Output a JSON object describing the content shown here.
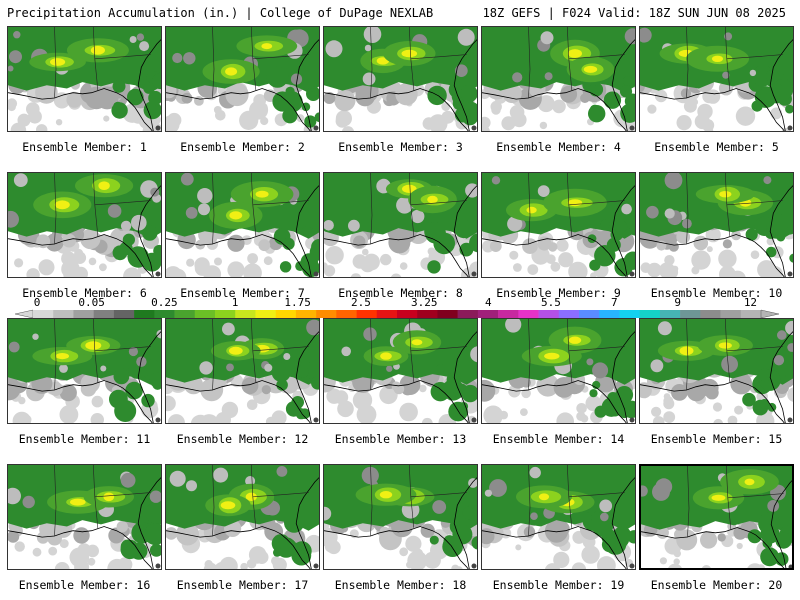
{
  "header": {
    "title_left": "Precipitation Accumulation (in.) | College of DuPage NEXLAB",
    "title_right": "18Z GEFS | F024 Valid: 18Z SUN JUN 08 2025"
  },
  "members": [
    {
      "label": "Ensemble Member: 1",
      "hot": [
        [
          0.32,
          0.33
        ],
        [
          0.58,
          0.22
        ]
      ],
      "selected": false
    },
    {
      "label": "Ensemble Member: 2",
      "hot": [
        [
          0.65,
          0.18
        ],
        [
          0.42,
          0.42
        ]
      ],
      "selected": false
    },
    {
      "label": "Ensemble Member: 3",
      "hot": [
        [
          0.38,
          0.32
        ],
        [
          0.55,
          0.25
        ]
      ],
      "selected": false
    },
    {
      "label": "Ensemble Member: 4",
      "hot": [
        [
          0.6,
          0.25
        ],
        [
          0.7,
          0.4
        ]
      ],
      "selected": false
    },
    {
      "label": "Ensemble Member: 5",
      "hot": [
        [
          0.3,
          0.25
        ],
        [
          0.5,
          0.3
        ]
      ],
      "selected": false
    },
    {
      "label": "Ensemble Member: 6",
      "hot": [
        [
          0.62,
          0.12
        ],
        [
          0.35,
          0.3
        ]
      ],
      "selected": false
    },
    {
      "label": "Ensemble Member: 7",
      "hot": [
        [
          0.62,
          0.2
        ],
        [
          0.45,
          0.4
        ]
      ],
      "selected": false
    },
    {
      "label": "Ensemble Member: 8",
      "hot": [
        [
          0.55,
          0.15
        ],
        [
          0.7,
          0.25
        ]
      ],
      "selected": false
    },
    {
      "label": "Ensemble Member: 9",
      "hot": [
        [
          0.32,
          0.35
        ],
        [
          0.6,
          0.28
        ]
      ],
      "selected": false
    },
    {
      "label": "Ensemble Member: 10",
      "hot": [
        [
          0.68,
          0.28
        ],
        [
          0.55,
          0.2
        ]
      ],
      "selected": false
    },
    {
      "label": "Ensemble Member: 11",
      "hot": [
        [
          0.35,
          0.35
        ],
        [
          0.55,
          0.25
        ]
      ],
      "selected": false
    },
    {
      "label": "Ensemble Member: 12",
      "hot": [
        [
          0.62,
          0.28
        ],
        [
          0.45,
          0.3
        ]
      ],
      "selected": false
    },
    {
      "label": "Ensemble Member: 13",
      "hot": [
        [
          0.6,
          0.22
        ],
        [
          0.4,
          0.35
        ]
      ],
      "selected": false
    },
    {
      "label": "Ensemble Member: 14",
      "hot": [
        [
          0.6,
          0.2
        ],
        [
          0.45,
          0.35
        ]
      ],
      "selected": false
    },
    {
      "label": "Ensemble Member: 15",
      "hot": [
        [
          0.3,
          0.3
        ],
        [
          0.55,
          0.25
        ]
      ],
      "selected": false
    },
    {
      "label": "Ensemble Member: 16",
      "hot": [
        [
          0.45,
          0.35
        ],
        [
          0.65,
          0.3
        ]
      ],
      "selected": false
    },
    {
      "label": "Ensemble Member: 17",
      "hot": [
        [
          0.55,
          0.3
        ],
        [
          0.4,
          0.38
        ]
      ],
      "selected": false
    },
    {
      "label": "Ensemble Member: 18",
      "hot": [
        [
          0.55,
          0.3
        ],
        [
          0.4,
          0.28
        ]
      ],
      "selected": false
    },
    {
      "label": "Ensemble Member: 19",
      "hot": [
        [
          0.55,
          0.35
        ],
        [
          0.4,
          0.3
        ]
      ],
      "selected": false
    },
    {
      "label": "Ensemble Member: 20",
      "hot": [
        [
          0.7,
          0.15
        ],
        [
          0.5,
          0.3
        ]
      ],
      "selected": true
    }
  ],
  "colorbar": {
    "tick_labels": [
      "0",
      "0.05",
      "0.25",
      "1",
      "1.75",
      "2.5",
      "3.25",
      "4",
      "5.5",
      "7",
      "9",
      "12"
    ],
    "tick_fractions": [
      0.0,
      0.075,
      0.175,
      0.272,
      0.358,
      0.445,
      0.532,
      0.62,
      0.706,
      0.793,
      0.88,
      0.98
    ],
    "colors": [
      "#d8d8d8",
      "#bebebe",
      "#a0a0a0",
      "#808080",
      "#646464",
      "#1f7a1f",
      "#2e8b2e",
      "#4aa32e",
      "#6bbf26",
      "#8cd21e",
      "#c8e61e",
      "#f0f014",
      "#ffd700",
      "#ffb400",
      "#ff8c00",
      "#ff6400",
      "#ff3200",
      "#e61414",
      "#c8001e",
      "#a0001e",
      "#80001e",
      "#8b1a5a",
      "#a0207a",
      "#c828a0",
      "#e632c8",
      "#b450e6",
      "#8c6eff",
      "#5a8cff",
      "#28b4ff",
      "#14d2f0",
      "#14d2c8",
      "#46b4b4",
      "#6e9696",
      "#8c8c8c",
      "#a0a0a0",
      "#b4b4b4"
    ]
  }
}
